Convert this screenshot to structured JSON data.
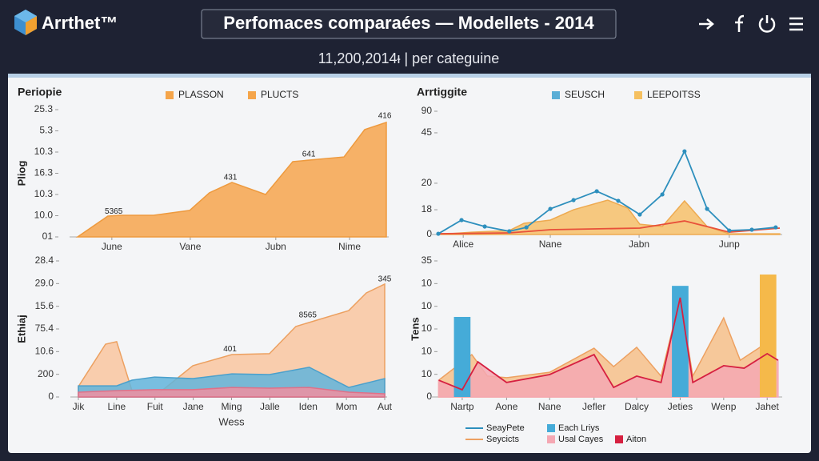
{
  "header": {
    "brand": "Arrthet™",
    "title": "Perfomaces comparaées — Modellets - 2014",
    "subtitle": "11,200,2014ᵻ | per categuine"
  },
  "chart_data": [
    {
      "type": "area",
      "title": "Periopie",
      "ylabel": "Pliog",
      "legend": [
        {
          "name": "PLASSON",
          "color": "#f5a54a",
          "kind": "box"
        },
        {
          "name": "PLUCTS",
          "color": "#f5a54a",
          "kind": "box"
        }
      ],
      "xlim": [
        0,
        100
      ],
      "xticks": [
        {
          "value": 11.1,
          "label": "June"
        },
        {
          "value": 36.5,
          "label": "Vane"
        },
        {
          "value": 64.2,
          "label": "Jubn"
        },
        {
          "value": 88.1,
          "label": "Nime"
        }
      ],
      "ylim": [
        0,
        6
      ],
      "yticks": [
        {
          "value": 0,
          "label": "01"
        },
        {
          "value": 1,
          "label": "10.0"
        },
        {
          "value": 2,
          "label": "10.3"
        },
        {
          "value": 3,
          "label": "16.3"
        },
        {
          "value": 4,
          "label": "10.3"
        },
        {
          "value": 5,
          "label": "5.3"
        },
        {
          "value": 6,
          "label": "25.3"
        }
      ],
      "series": [
        {
          "kind": "area",
          "color": "#f6a54e",
          "stroke": "#ee9a3e",
          "x": [
            0,
            9.8,
            13.7,
            24.6,
            36.3,
            42.7,
            50,
            60.9,
            69.7,
            86.3,
            93,
            100
          ],
          "values": [
            0,
            0.98,
            1.02,
            1.02,
            1.25,
            2.08,
            2.57,
            2.0,
            3.55,
            3.77,
            5.06,
            5.4
          ]
        }
      ],
      "annotations": [
        {
          "text": "5365",
          "x": 11.7,
          "y": 1.2
        },
        {
          "text": "431",
          "x": 49.5,
          "y": 2.8
        },
        {
          "text": "641",
          "x": 74.9,
          "y": 3.9
        },
        {
          "text": "416",
          "x": 99.5,
          "y": 5.7
        }
      ]
    },
    {
      "type": "line",
      "title": "Arrtiggite",
      "legend": [
        {
          "name": "SEUSCH",
          "color": "#5aaed6",
          "kind": "box"
        },
        {
          "name": "LEEPOITSS",
          "color": "#f5c060",
          "kind": "box"
        }
      ],
      "xlim": [
        0,
        100
      ],
      "xticks": [
        {
          "value": 7.3,
          "label": "Alice"
        },
        {
          "value": 32.8,
          "label": "Nane"
        },
        {
          "value": 58.8,
          "label": "Jabn"
        },
        {
          "value": 85.2,
          "label": "Junp"
        }
      ],
      "ylim": [
        0,
        100
      ],
      "yticks": [
        0,
        {
          "value": 20.1,
          "label": "18"
        },
        {
          "value": 41.6,
          "label": "20"
        },
        {
          "value": 82.5,
          "label": "45"
        },
        {
          "value": 100,
          "label": "90"
        }
      ],
      "series": [
        {
          "kind": "area",
          "color": "#f6c06a",
          "stroke": "#eeaa50",
          "x": [
            0,
            9.8,
            20.8,
            25.1,
            32.8,
            39.6,
            49.6,
            55.5,
            59,
            65.6,
            72.1,
            78.7,
            85.2,
            100
          ],
          "values": [
            0,
            1.9,
            3.2,
            9.1,
            11.7,
            20.1,
            27.9,
            21.4,
            8.4,
            6.5,
            27.3,
            6.5,
            0.6,
            0.6
          ]
        },
        {
          "kind": "line",
          "color": "#e8503a",
          "x": [
            0,
            20.8,
            32.8,
            59,
            72.1,
            85.2,
            100
          ],
          "values": [
            0.6,
            1.3,
            3.9,
            5.2,
            11,
            1.9,
            5.2
          ]
        },
        {
          "kind": "line",
          "color": "#2d8fbd",
          "markers": true,
          "x": [
            0,
            6.8,
            13.6,
            20.8,
            25.8,
            32.8,
            39.6,
            46.4,
            52.7,
            59,
            65.6,
            72.1,
            78.7,
            85.2,
            91.8,
            98.8
          ],
          "values": [
            0.6,
            11.7,
            6.5,
            2.6,
            5.8,
            20.8,
            27.9,
            35.1,
            27.3,
            16.2,
            32.5,
            67.5,
            20.8,
            3.2,
            3.9,
            5.8
          ]
        }
      ]
    },
    {
      "type": "area",
      "ylabel": "Ethiaj",
      "xlabel": "Wess",
      "xlim": [
        0,
        8
      ],
      "xticks": [
        {
          "value": 0,
          "label": "Jik"
        },
        {
          "value": 1,
          "label": "Line"
        },
        {
          "value": 2,
          "label": "Fuit"
        },
        {
          "value": 3,
          "label": "Jane"
        },
        {
          "value": 4,
          "label": "Ming"
        },
        {
          "value": 5,
          "label": "Jalle"
        },
        {
          "value": 6,
          "label": "Iden"
        },
        {
          "value": 7,
          "label": "Mom"
        },
        {
          "value": 8,
          "label": "Aut"
        }
      ],
      "ylim": [
        0,
        6
      ],
      "yticks": [
        0,
        {
          "value": 1,
          "label": "200"
        },
        {
          "value": 2,
          "label": "10.6"
        },
        {
          "value": 3,
          "label": "75.4"
        },
        {
          "value": 4,
          "label": "15.6"
        },
        {
          "value": 5,
          "label": "29.0"
        },
        {
          "value": 6,
          "label": "28.4"
        }
      ],
      "series": [
        {
          "kind": "area",
          "color": "#f9c6a0",
          "stroke": "#eca060",
          "x": [
            0,
            0.71,
            1,
            1.4,
            2.13,
            2.99,
            4.01,
            4.99,
            5.68,
            7.06,
            7.52,
            8
          ],
          "values": [
            0.46,
            2.33,
            2.44,
            0.28,
            0.21,
            1.38,
            1.87,
            1.91,
            3.11,
            3.81,
            4.59,
            4.98
          ]
        },
        {
          "kind": "area",
          "color": "#62b4dc",
          "stroke": "#4aa0cc",
          "x": [
            0,
            1,
            1.4,
            1.99,
            2.99,
            4.01,
            4.99,
            6.03,
            7.06,
            8
          ],
          "values": [
            0.49,
            0.49,
            0.74,
            0.88,
            0.81,
            1.02,
            0.99,
            1.31,
            0.42,
            0.81
          ]
        },
        {
          "kind": "area",
          "color": "#f08ea0",
          "stroke": "#e07088",
          "x": [
            0,
            1,
            1.99,
            2.99,
            4.01,
            4.99,
            6.03,
            7.06,
            8
          ],
          "values": [
            0.21,
            0.28,
            0.32,
            0.32,
            0.42,
            0.39,
            0.42,
            0.21,
            0.14
          ]
        }
      ],
      "annotations": [
        {
          "text": "401",
          "x": 3.96,
          "y": 2.1
        },
        {
          "text": "8565",
          "x": 5.99,
          "y": 3.6
        },
        {
          "text": "345",
          "x": 8,
          "y": 5.2
        }
      ]
    },
    {
      "type": "mixed",
      "ylabel": "Tens",
      "legend": [
        {
          "name": "SeayPete",
          "color": "#2d8fbd",
          "kind": "line"
        },
        {
          "name": "Each Lriys",
          "color": "#45abd8",
          "kind": "box"
        },
        {
          "name": "Seycicts",
          "color": "#eda060",
          "kind": "line"
        },
        {
          "name": "Usal Cayes",
          "color": "#f5a8b3",
          "kind": "box"
        },
        {
          "name": "Aiton",
          "color": "#d62040",
          "kind": "box"
        }
      ],
      "xlim": [
        -0.55,
        7.3
      ],
      "xticks": [
        {
          "value": 0,
          "label": "Nartp"
        },
        {
          "value": 1.02,
          "label": "Aone"
        },
        {
          "value": 2.01,
          "label": "Nane"
        },
        {
          "value": 3.03,
          "label": "Jefler"
        },
        {
          "value": 4.01,
          "label": "Dalcy"
        },
        {
          "value": 5.01,
          "label": "Jeties"
        },
        {
          "value": 6.01,
          "label": "Wenp"
        },
        {
          "value": 7.01,
          "label": "Jahet"
        }
      ],
      "ylim": [
        0,
        6
      ],
      "yticks": [
        0,
        {
          "value": 1,
          "label": "10"
        },
        {
          "value": 2,
          "label": "10"
        },
        {
          "value": 3,
          "label": "10"
        },
        {
          "value": 4,
          "label": "10"
        },
        {
          "value": 5,
          "label": "10"
        },
        {
          "value": 6,
          "label": "35"
        }
      ],
      "series": [
        {
          "kind": "area",
          "color": "#f6c08a",
          "stroke": "#eda060",
          "x": [
            -0.54,
            0.22,
            0.58,
            1.02,
            2.01,
            3.03,
            3.48,
            4.01,
            4.57,
            5.01,
            5.3,
            6.01,
            6.39,
            7.01,
            7.2
          ],
          "values": [
            0.74,
            1.87,
            0.92,
            0.85,
            1.09,
            2.15,
            1.34,
            2.19,
            0.92,
            4.38,
            0.92,
            3.49,
            1.62,
            2.4,
            1.62
          ]
        },
        {
          "kind": "area",
          "color": "#f5a8b3",
          "stroke": "#f5a8b3",
          "x": [
            -0.54,
            0,
            0.36,
            1.02,
            2.01,
            3.03,
            3.48,
            4.01,
            4.57,
            5.01,
            5.3,
            6.01,
            6.48,
            7.01,
            7.26
          ],
          "values": [
            0.74,
            0.32,
            1.55,
            0.64,
            0.99,
            1.87,
            0.42,
            0.92,
            0.64,
            4.38,
            0.64,
            1.38,
            1.27,
            1.91,
            1.62
          ]
        },
        {
          "kind": "bar",
          "color": "#45abd8",
          "x": [
            0,
            5.01
          ],
          "values": [
            3.53,
            4.9
          ]
        },
        {
          "kind": "bar",
          "color": "#f5b94a",
          "x": [
            7.03
          ],
          "values": [
            5.4
          ]
        },
        {
          "kind": "line",
          "color": "#d62040",
          "x": [
            -0.54,
            0,
            0.36,
            1.02,
            2.01,
            3.03,
            3.48,
            4.01,
            4.57,
            5.01,
            5.3,
            6.01,
            6.48,
            7.01,
            7.26
          ],
          "values": [
            0.74,
            0.32,
            1.55,
            0.64,
            0.99,
            1.87,
            0.42,
            0.92,
            0.64,
            4.38,
            0.64,
            1.38,
            1.27,
            1.91,
            1.62
          ]
        }
      ]
    }
  ]
}
